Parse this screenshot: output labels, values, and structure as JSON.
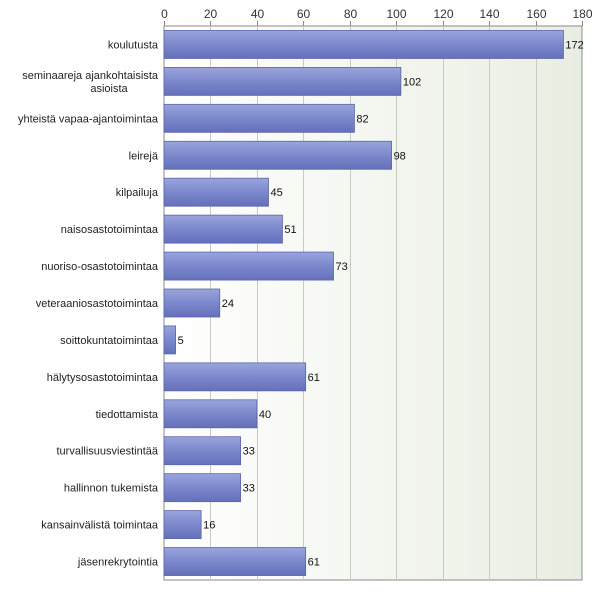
{
  "chart_data": {
    "type": "bar",
    "orientation": "horizontal",
    "categories": [
      [
        "koulutusta"
      ],
      [
        "seminaareja ajankohtaisista",
        "asioista"
      ],
      [
        "yhteistä vapaa-ajantoimintaa"
      ],
      [
        "leirejä"
      ],
      [
        "kilpailuja"
      ],
      [
        "naisosastotoimintaa"
      ],
      [
        "nuoriso-osastotoimintaa"
      ],
      [
        "veteraaniosastotoimintaa"
      ],
      [
        "soittokuntatoimintaa"
      ],
      [
        "hälytysosastotoimintaa"
      ],
      [
        "tiedottamista"
      ],
      [
        "turvallisuusviestintää"
      ],
      [
        "hallinnon tukemista"
      ],
      [
        "kansainvälistä toimintaa"
      ],
      [
        "jäsenrekrytointia"
      ]
    ],
    "values": [
      172,
      102,
      82,
      98,
      45,
      51,
      73,
      24,
      5,
      61,
      40,
      33,
      33,
      16,
      61
    ],
    "xlim": [
      0,
      180
    ],
    "ticks": [
      0,
      20,
      40,
      60,
      80,
      100,
      120,
      140,
      160,
      180
    ],
    "axis_position": "top",
    "grid": true,
    "bar_color": "#7b88cc",
    "bar_edge_color": "#5a66aa",
    "plot_background": "#eef1e9"
  }
}
